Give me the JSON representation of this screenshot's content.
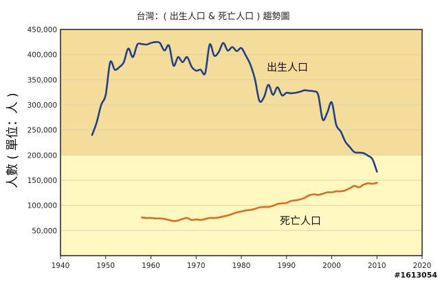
{
  "chart_data": {
    "type": "line",
    "title": "台灣：( 出生人口 & 死亡人口 ) 趨勢圖",
    "ylabel": "人數 ( 單位：人 )",
    "xlabel": "",
    "xlim": [
      1940,
      2020
    ],
    "ylim": [
      0,
      450000
    ],
    "x_ticks": [
      "1940",
      "1950",
      "1960",
      "1970",
      "1980",
      "1990",
      "2000",
      "2010",
      "2020"
    ],
    "y_ticks": [
      "50,000",
      "100,000",
      "150,000",
      "200,000",
      "250,000",
      "300,000",
      "350,000",
      "400,000",
      "450,000"
    ],
    "grid": true,
    "colors": {
      "births": "#1f3f8a",
      "deaths": "#e06a20",
      "plot_bg_light": "#fff8c0",
      "plot_bg_dark": "#f4dd9a",
      "frame": "#222222",
      "grid": "#d8d0a8"
    },
    "series": [
      {
        "name": "出生人口",
        "x": [
          1947,
          1948,
          1949,
          1950,
          1951,
          1952,
          1953,
          1954,
          1955,
          1956,
          1957,
          1958,
          1959,
          1960,
          1961,
          1962,
          1963,
          1964,
          1965,
          1966,
          1967,
          1968,
          1969,
          1970,
          1971,
          1972,
          1973,
          1974,
          1975,
          1976,
          1977,
          1978,
          1979,
          1980,
          1981,
          1982,
          1983,
          1984,
          1985,
          1986,
          1987,
          1988,
          1989,
          1990,
          1991,
          1992,
          1993,
          1994,
          1995,
          1996,
          1997,
          1998,
          1999,
          2000,
          2001,
          2002,
          2003,
          2004,
          2005,
          2006,
          2007,
          2008,
          2009,
          2010
        ],
        "values": [
          240000,
          265000,
          300000,
          320000,
          385000,
          370000,
          375000,
          385000,
          412000,
          395000,
          420000,
          421000,
          420000,
          423000,
          425000,
          423000,
          408000,
          418000,
          378000,
          395000,
          385000,
          395000,
          376000,
          368000,
          370000,
          363000,
          420000,
          398000,
          405000,
          423000,
          408000,
          415000,
          407000,
          413000,
          398000,
          380000,
          352000,
          308000,
          315000,
          340000,
          320000,
          335000,
          319000,
          324000,
          323000,
          324000,
          326000,
          329000,
          328000,
          327000,
          320000,
          271000,
          284000,
          305000,
          260000,
          247000,
          227000,
          216000,
          206000,
          205000,
          204000,
          199000,
          192000,
          167000
        ]
      },
      {
        "name": "死亡人口",
        "x": [
          1958,
          1959,
          1960,
          1961,
          1962,
          1963,
          1964,
          1965,
          1966,
          1967,
          1968,
          1969,
          1970,
          1971,
          1972,
          1973,
          1974,
          1975,
          1976,
          1977,
          1978,
          1979,
          1980,
          1981,
          1982,
          1983,
          1984,
          1985,
          1986,
          1987,
          1988,
          1989,
          1990,
          1991,
          1992,
          1993,
          1994,
          1995,
          1996,
          1997,
          1998,
          1999,
          2000,
          2001,
          2002,
          2003,
          2004,
          2005,
          2006,
          2007,
          2008,
          2009,
          2010
        ],
        "values": [
          76000,
          75000,
          75000,
          74000,
          74000,
          73000,
          71000,
          69000,
          70000,
          73000,
          75000,
          71000,
          72000,
          71000,
          73000,
          75000,
          75000,
          76000,
          78000,
          80000,
          83000,
          86000,
          88000,
          90000,
          91000,
          93000,
          96000,
          97000,
          97000,
          99000,
          103000,
          104000,
          105000,
          109000,
          110000,
          112000,
          115000,
          120000,
          122000,
          121000,
          123000,
          126000,
          126000,
          128000,
          128000,
          130000,
          134000,
          139000,
          136000,
          141000,
          144000,
          143000,
          145000
        ]
      }
    ]
  },
  "labels": {
    "births": "出生人口",
    "deaths": "死亡人口"
  },
  "watermark": "#1613054"
}
